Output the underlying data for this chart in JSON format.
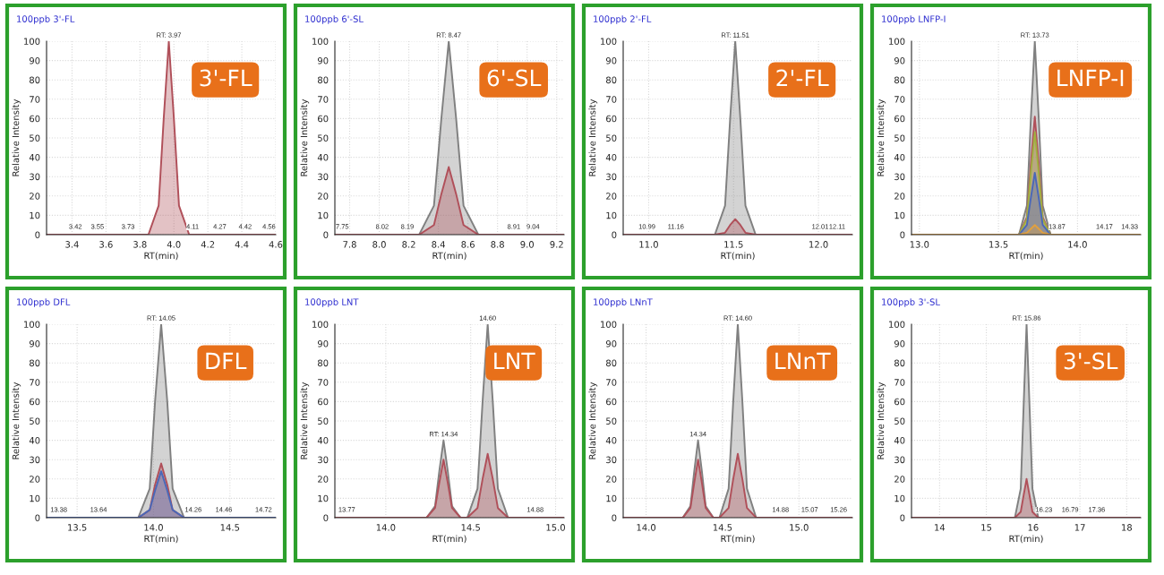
{
  "chart_data": [
    {
      "type": "area",
      "title": "3'-FL",
      "subtitle": "100ppb 3'-FL",
      "xlabel": "RT(min)",
      "ylabel": "Relative Intensity",
      "xlim": [
        3.25,
        4.6
      ],
      "xticks": [
        3.4,
        3.6,
        3.8,
        {
          "value": 4,
          "label": "4.0"
        },
        4.2,
        4.4,
        4.6
      ],
      "ylim": [
        0,
        100
      ],
      "yticks": [
        0,
        10,
        20,
        30,
        40,
        50,
        60,
        70,
        80,
        90,
        100
      ],
      "grid": true,
      "x": [
        3.25,
        3.85,
        3.91,
        3.94,
        3.97,
        4.0,
        4.03,
        4.09,
        4.6
      ],
      "series": [
        {
          "color": "#b0505a",
          "values": [
            0,
            0,
            15,
            60,
            100,
            60,
            15,
            0,
            0
          ]
        }
      ],
      "annotations": [
        {
          "text": "RT: 3.97",
          "x": 3.97,
          "y": 100
        },
        {
          "text": "3.42",
          "x": 3.42,
          "y": 1
        },
        {
          "text": "3.55",
          "x": 3.55,
          "y": 1
        },
        {
          "text": "3.73",
          "x": 3.73,
          "y": 1
        },
        {
          "text": "4.11",
          "x": 4.11,
          "y": 1
        },
        {
          "text": "4.27",
          "x": 4.27,
          "y": 1
        },
        {
          "text": "4.42",
          "x": 4.42,
          "y": 1
        },
        {
          "text": "4.56",
          "x": 4.56,
          "y": 1
        }
      ]
    },
    {
      "type": "area",
      "title": "6'-SL",
      "subtitle": "100ppb 6'-SL",
      "xlabel": "RT(min)",
      "ylabel": "Relative Intensity",
      "xlim": [
        7.7,
        9.25
      ],
      "xticks": [
        7.8,
        {
          "value": 8,
          "label": "8.0"
        },
        8.2,
        8.4,
        8.6,
        8.8,
        {
          "value": 9,
          "label": "9.0"
        },
        9.2
      ],
      "ylim": [
        0,
        100
      ],
      "yticks": [
        0,
        10,
        20,
        30,
        40,
        50,
        60,
        70,
        80,
        90,
        100
      ],
      "grid": true,
      "x": [
        7.7,
        8.27,
        8.37,
        8.42,
        8.47,
        8.52,
        8.57,
        8.67,
        9.25
      ],
      "series": [
        {
          "color": "#808080",
          "values": [
            0,
            0,
            15,
            60,
            100,
            60,
            15,
            0,
            0
          ]
        },
        {
          "color": "#b0505a",
          "values": [
            0,
            0,
            5,
            21,
            35,
            21,
            5,
            0,
            0
          ]
        }
      ],
      "annotations": [
        {
          "text": "RT: 8.47",
          "x": 8.47,
          "y": 100
        },
        {
          "text": "7.75",
          "x": 7.75,
          "y": 1
        },
        {
          "text": "8.02",
          "x": 8.02,
          "y": 1
        },
        {
          "text": "8.19",
          "x": 8.19,
          "y": 1
        },
        {
          "text": "8.91",
          "x": 8.91,
          "y": 1
        },
        {
          "text": "9.04",
          "x": 9.04,
          "y": 1
        }
      ]
    },
    {
      "type": "area",
      "title": "2'-FL",
      "subtitle": "100ppb 2'-FL",
      "xlabel": "RT(min)",
      "ylabel": "Relative Intensity",
      "xlim": [
        10.85,
        12.2
      ],
      "xticks": [
        {
          "value": 11,
          "label": "11.0"
        },
        11.5,
        {
          "value": 12,
          "label": "12.0"
        }
      ],
      "ylim": [
        0,
        100
      ],
      "yticks": [
        0,
        10,
        20,
        30,
        40,
        50,
        60,
        70,
        80,
        90,
        100
      ],
      "grid": true,
      "x": [
        10.85,
        11.39,
        11.45,
        11.48,
        11.51,
        11.54,
        11.57,
        11.63,
        12.2
      ],
      "series": [
        {
          "color": "#808080",
          "values": [
            0,
            0,
            15,
            60,
            100,
            60,
            15,
            0,
            0
          ]
        },
        {
          "color": "#b0505a",
          "values": [
            0,
            0,
            1,
            5,
            8,
            5,
            1,
            0,
            0
          ]
        }
      ],
      "annotations": [
        {
          "text": "RT: 11.51",
          "x": 11.51,
          "y": 100
        },
        {
          "text": "10.99",
          "x": 10.99,
          "y": 1
        },
        {
          "text": "11.16",
          "x": 11.16,
          "y": 1
        },
        {
          "text": "12.01",
          "x": 12.01,
          "y": 1
        },
        {
          "text": "12.11",
          "x": 12.11,
          "y": 1
        }
      ]
    },
    {
      "type": "area",
      "title": "LNFP-I",
      "subtitle": "100ppb LNFP-I",
      "xlabel": "RT(min)",
      "ylabel": "Relative Intensity",
      "xlim": [
        12.95,
        14.4
      ],
      "xticks": [
        {
          "value": 13,
          "label": "13.0"
        },
        13.5,
        {
          "value": 14,
          "label": "14.0"
        }
      ],
      "ylim": [
        0,
        100
      ],
      "yticks": [
        0,
        10,
        20,
        30,
        40,
        50,
        60,
        70,
        80,
        90,
        100
      ],
      "grid": true,
      "x": [
        12.95,
        13.63,
        13.68,
        13.705,
        13.73,
        13.755,
        13.78,
        13.83,
        14.4
      ],
      "series": [
        {
          "color": "#808080",
          "values": [
            0,
            0,
            15,
            60,
            100,
            60,
            15,
            0,
            0
          ]
        },
        {
          "color": "#b0505a",
          "values": [
            0,
            0,
            9,
            37,
            61,
            37,
            9,
            0,
            0
          ]
        },
        {
          "color": "#a0b040",
          "values": [
            0,
            0,
            8,
            32,
            53,
            32,
            8,
            0,
            0
          ]
        },
        {
          "color": "#4a68b8",
          "values": [
            0,
            0,
            5,
            19,
            32,
            19,
            5,
            0,
            0
          ]
        },
        {
          "color": "#e0a040",
          "values": [
            0,
            0,
            1,
            3,
            5,
            3,
            1,
            0,
            0
          ]
        }
      ],
      "annotations": [
        {
          "text": "RT: 13.73",
          "x": 13.73,
          "y": 100
        },
        {
          "text": "13.87",
          "x": 13.87,
          "y": 1
        },
        {
          "text": "14.17",
          "x": 14.17,
          "y": 1
        },
        {
          "text": "14.33",
          "x": 14.33,
          "y": 1
        }
      ]
    },
    {
      "type": "area",
      "title": "DFL",
      "subtitle": "100ppb DFL",
      "xlabel": "RT(min)",
      "ylabel": "Relative Intensity",
      "xlim": [
        13.3,
        14.8
      ],
      "xticks": [
        13.5,
        {
          "value": 14,
          "label": "14.0"
        },
        14.5
      ],
      "ylim": [
        0,
        100
      ],
      "yticks": [
        0,
        10,
        20,
        30,
        40,
        50,
        60,
        70,
        80,
        90,
        100
      ],
      "grid": true,
      "x": [
        13.3,
        13.9,
        13.975,
        14.01,
        14.05,
        14.09,
        14.125,
        14.2,
        14.8
      ],
      "series": [
        {
          "color": "#808080",
          "values": [
            0,
            0,
            15,
            60,
            100,
            60,
            15,
            0,
            0
          ]
        },
        {
          "color": "#b0505a",
          "values": [
            0,
            0,
            4,
            17,
            28,
            17,
            4,
            0,
            0
          ]
        },
        {
          "color": "#4a68b8",
          "values": [
            0,
            0,
            4,
            14,
            24,
            14,
            4,
            0,
            0
          ]
        }
      ],
      "annotations": [
        {
          "text": "RT: 14.05",
          "x": 14.05,
          "y": 100
        },
        {
          "text": "13.38",
          "x": 13.38,
          "y": 1
        },
        {
          "text": "13.64",
          "x": 13.64,
          "y": 1
        },
        {
          "text": "14.26",
          "x": 14.26,
          "y": 1
        },
        {
          "text": "14.46",
          "x": 14.46,
          "y": 1
        },
        {
          "text": "14.72",
          "x": 14.72,
          "y": 1
        }
      ]
    },
    {
      "type": "area",
      "title": "LNT",
      "subtitle": "100ppb LNT",
      "xlabel": "RT(min)",
      "ylabel": "Relative Intensity",
      "xlim": [
        13.7,
        15.05
      ],
      "xticks": [
        {
          "value": 14,
          "label": "14.0"
        },
        14.5,
        {
          "value": 15,
          "label": "15.0"
        }
      ],
      "ylim": [
        0,
        100
      ],
      "yticks": [
        0,
        10,
        20,
        30,
        40,
        50,
        60,
        70,
        80,
        90,
        100
      ],
      "grid": true,
      "x": [
        13.7,
        14.24,
        14.29,
        14.315,
        14.34,
        14.365,
        14.39,
        14.44,
        14.48,
        14.54,
        14.57,
        14.6,
        14.63,
        14.66,
        14.72,
        15.05
      ],
      "series": [
        {
          "color": "#808080",
          "values": [
            0,
            0,
            6,
            24,
            40,
            24,
            6,
            0,
            0,
            15,
            60,
            100,
            60,
            15,
            0,
            0
          ]
        },
        {
          "color": "#b0505a",
          "values": [
            0,
            0,
            5,
            18,
            30,
            18,
            5,
            0,
            0,
            5,
            20,
            33,
            20,
            5,
            0,
            0
          ]
        }
      ],
      "annotations": [
        {
          "text": "RT: 14.34",
          "x": 14.34,
          "y": 40
        },
        {
          "text": "14.60",
          "x": 14.6,
          "y": 100
        },
        {
          "text": "13.77",
          "x": 13.77,
          "y": 1
        },
        {
          "text": "14.88",
          "x": 14.88,
          "y": 1
        }
      ]
    },
    {
      "type": "area",
      "title": "LNnT",
      "subtitle": "100ppb LNnT",
      "xlabel": "RT(min)",
      "ylabel": "Relative Intensity",
      "xlim": [
        13.85,
        15.35
      ],
      "xticks": [
        {
          "value": 14,
          "label": "14.0"
        },
        14.5,
        {
          "value": 15,
          "label": "15.0"
        }
      ],
      "ylim": [
        0,
        100
      ],
      "yticks": [
        0,
        10,
        20,
        30,
        40,
        50,
        60,
        70,
        80,
        90,
        100
      ],
      "grid": true,
      "x": [
        13.85,
        14.24,
        14.29,
        14.315,
        14.34,
        14.365,
        14.39,
        14.44,
        14.48,
        14.54,
        14.57,
        14.6,
        14.63,
        14.66,
        14.72,
        15.35
      ],
      "series": [
        {
          "color": "#808080",
          "values": [
            0,
            0,
            6,
            24,
            40,
            24,
            6,
            0,
            0,
            15,
            60,
            100,
            60,
            15,
            0,
            0
          ]
        },
        {
          "color": "#b0505a",
          "values": [
            0,
            0,
            5,
            18,
            30,
            18,
            5,
            0,
            0,
            5,
            20,
            33,
            20,
            5,
            0,
            0
          ]
        }
      ],
      "annotations": [
        {
          "text": "14.34",
          "x": 14.34,
          "y": 40
        },
        {
          "text": "RT: 14.60",
          "x": 14.6,
          "y": 100
        },
        {
          "text": "14.88",
          "x": 14.88,
          "y": 1
        },
        {
          "text": "15.07",
          "x": 15.07,
          "y": 1
        },
        {
          "text": "15.26",
          "x": 15.26,
          "y": 1
        }
      ]
    },
    {
      "type": "area",
      "title": "3'-SL",
      "subtitle": "100ppb 3'-SL",
      "xlabel": "RT(min)",
      "ylabel": "Relative Intensity",
      "xlim": [
        13.4,
        18.3
      ],
      "xticks": [
        14,
        15,
        16,
        17,
        18
      ],
      "ylim": [
        0,
        100
      ],
      "yticks": [
        0,
        10,
        20,
        30,
        40,
        50,
        60,
        70,
        80,
        90,
        100
      ],
      "grid": true,
      "x": [
        13.4,
        15.61,
        15.735,
        15.8,
        15.86,
        15.92,
        15.985,
        16.11,
        18.3
      ],
      "series": [
        {
          "color": "#808080",
          "values": [
            0,
            0,
            15,
            60,
            100,
            60,
            15,
            0,
            0
          ]
        },
        {
          "color": "#b0505a",
          "values": [
            0,
            0,
            3,
            12,
            20,
            12,
            3,
            0,
            0
          ]
        }
      ],
      "annotations": [
        {
          "text": "RT: 15.86",
          "x": 15.86,
          "y": 100
        },
        {
          "text": "16.23",
          "x": 16.23,
          "y": 1
        },
        {
          "text": "16.79",
          "x": 16.79,
          "y": 1
        },
        {
          "text": "17.36",
          "x": 17.36,
          "y": 1
        }
      ]
    }
  ]
}
